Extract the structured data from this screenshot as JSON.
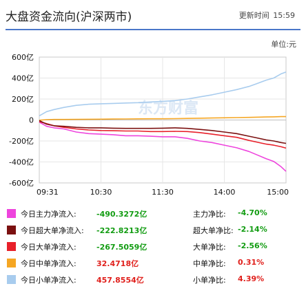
{
  "header": {
    "title": "大盘资金流向(沪深两市)",
    "update_label": "更新时间",
    "update_time": "15:59"
  },
  "unit_label": "单位:元",
  "watermark": "东方财富",
  "chart_data": {
    "type": "line",
    "title": "大盘资金流向(沪深两市)",
    "x_ticks": [
      "09:31",
      "10:30",
      "11:30",
      "14:00",
      "15:00"
    ],
    "y_ticks": [
      "600亿",
      "400亿",
      "200亿",
      "0",
      "-200亿",
      "-400亿",
      "-600亿"
    ],
    "ylim": [
      -600,
      600
    ],
    "grid": true,
    "x_positions": [
      0,
      0.03,
      0.06,
      0.1,
      0.15,
      0.2,
      0.25,
      0.3,
      0.35,
      0.4,
      0.45,
      0.5,
      0.55,
      0.6,
      0.65,
      0.7,
      0.75,
      0.8,
      0.85,
      0.88,
      0.92,
      0.95,
      0.98,
      1.0
    ],
    "series": [
      {
        "name": "今日主力净流入",
        "color": "#ee44dd",
        "values": [
          -20,
          -60,
          -75,
          -85,
          -115,
          -130,
          -135,
          -140,
          -150,
          -150,
          -155,
          -160,
          -160,
          -175,
          -200,
          -215,
          -240,
          -265,
          -300,
          -330,
          -370,
          -395,
          -445,
          -490
        ]
      },
      {
        "name": "今日超大单净流入",
        "color": "#7b1010",
        "values": [
          -5,
          -40,
          -55,
          -60,
          -70,
          -75,
          -75,
          -78,
          -80,
          -80,
          -80,
          -78,
          -75,
          -80,
          -90,
          -100,
          -115,
          -130,
          -155,
          -170,
          -190,
          -200,
          -215,
          -223
        ]
      },
      {
        "name": "今日大单净流入",
        "color": "#e8202a",
        "values": [
          -15,
          -35,
          -55,
          -70,
          -85,
          -95,
          -100,
          -102,
          -105,
          -105,
          -110,
          -110,
          -108,
          -110,
          -120,
          -135,
          -150,
          -165,
          -195,
          -210,
          -230,
          -240,
          -255,
          -268
        ]
      },
      {
        "name": "今日中单净流入",
        "color": "#f5a623",
        "values": [
          -2,
          3,
          5,
          5,
          6,
          7,
          8,
          9,
          10,
          11,
          12,
          12,
          13,
          15,
          17,
          19,
          21,
          23,
          25,
          27,
          29,
          30,
          32,
          32
        ]
      },
      {
        "name": "今日小单净流入",
        "color": "#a8ccee",
        "values": [
          40,
          80,
          100,
          120,
          140,
          150,
          155,
          158,
          162,
          165,
          172,
          178,
          185,
          200,
          220,
          240,
          265,
          290,
          320,
          345,
          380,
          400,
          440,
          458
        ]
      }
    ]
  },
  "legend": [
    {
      "label": "今日主力净流入:",
      "value": "-490.3272亿",
      "ratio_label": "主力净比:",
      "ratio": "-4.70%"
    },
    {
      "label": "今日超大单净流入:",
      "value": "-222.8213亿",
      "ratio_label": "超大单净比:",
      "ratio": "-2.14%"
    },
    {
      "label": "今日大单净流入:",
      "value": "-267.5059亿",
      "ratio_label": "大单净比:",
      "ratio": "-2.56%"
    },
    {
      "label": "今日中单净流入:",
      "value": "32.4718亿",
      "ratio_label": "中单净比:",
      "ratio": "0.31%"
    },
    {
      "label": "今日小单净流入:",
      "value": "457.8554亿",
      "ratio_label": "小单净比:",
      "ratio": "4.39%"
    }
  ]
}
